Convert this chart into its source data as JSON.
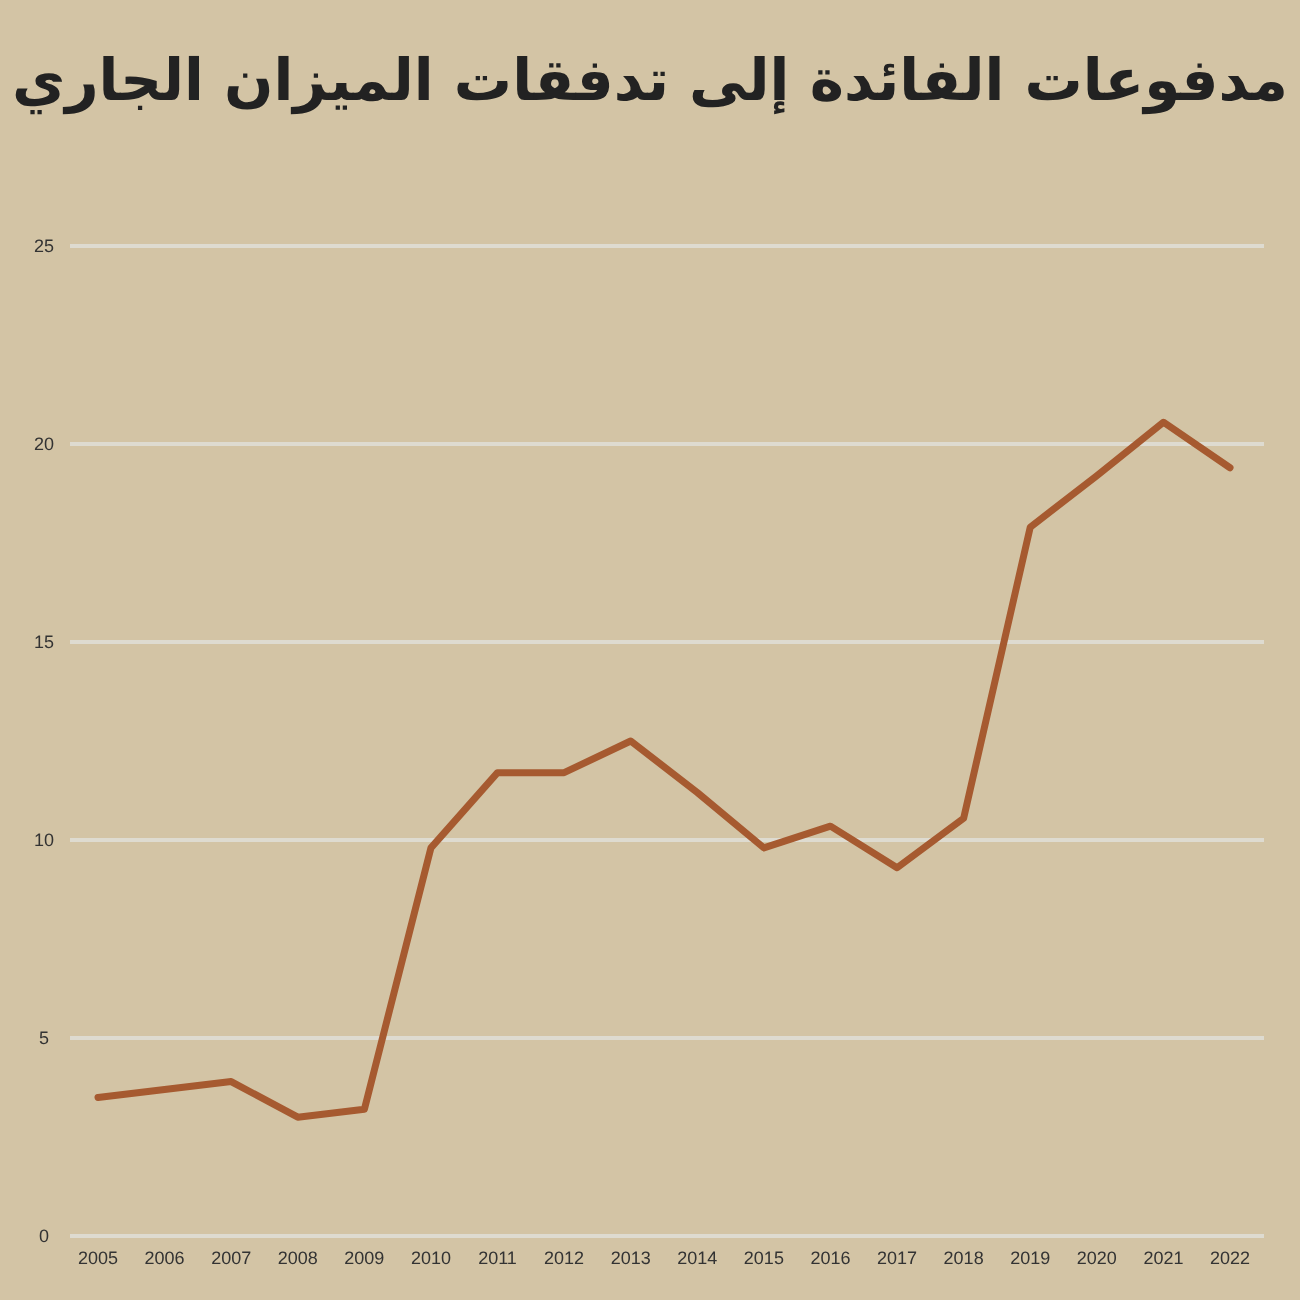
{
  "chart_data": {
    "type": "line",
    "title": "مدفوعات الفائدة إلى تدفقات الميزان الجاري",
    "categories": [
      "2005",
      "2006",
      "2007",
      "2008",
      "2009",
      "2010",
      "2011",
      "2012",
      "2013",
      "2014",
      "2015",
      "2016",
      "2017",
      "2018",
      "2019",
      "2020",
      "2021",
      "2022"
    ],
    "series": [
      {
        "color": "#a65a30",
        "values": [
          3.5,
          3.7,
          3.9,
          3.0,
          3.2,
          9.8,
          11.7,
          11.7,
          12.5,
          11.2,
          9.8,
          10.35,
          9.3,
          10.55,
          17.9,
          19.2,
          20.55,
          19.4
        ]
      }
    ],
    "ylim": [
      0,
      25
    ],
    "yticks": [
      0,
      5,
      10,
      15,
      20,
      25
    ],
    "grid": "y",
    "marker": "none",
    "line_style": "solid"
  }
}
